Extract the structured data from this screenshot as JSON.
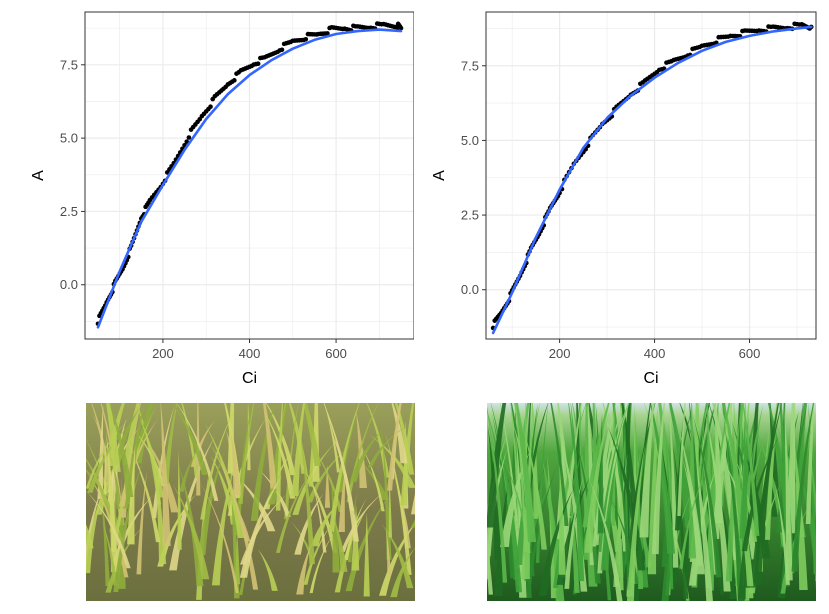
{
  "chart_data": [
    {
      "type": "scatter",
      "xlabel": "Ci",
      "ylabel": "A",
      "xlim": [
        20,
        780
      ],
      "ylim": [
        -1.85,
        9.3
      ],
      "xticks": [
        200,
        400,
        600
      ],
      "yticks": [
        0.0,
        2.5,
        5.0,
        7.5
      ],
      "xtick_labels": [
        "200",
        "400",
        "600"
      ],
      "ytick_labels": [
        "0.0",
        "2.5",
        "5.0",
        "7.5"
      ],
      "grid": true,
      "legend": "none",
      "colors": {
        "points": "#000000",
        "fit": "#3366ff",
        "grid": "#ebebeb",
        "frame": "#333333"
      },
      "series": [
        {
          "x": [
            50,
            70,
            90,
            110,
            130,
            150,
            170,
            200,
            230,
            260,
            290,
            320,
            350,
            380,
            410,
            440,
            470,
            500,
            530,
            560,
            590,
            620,
            650,
            680,
            710,
            740,
            750
          ],
          "y": [
            -1.25,
            -0.6,
            0.05,
            0.65,
            1.4,
            2.3,
            2.85,
            3.5,
            4.25,
            5.1,
            5.75,
            6.35,
            6.85,
            7.25,
            7.55,
            7.75,
            8.05,
            8.3,
            8.45,
            8.55,
            8.7,
            8.75,
            8.75,
            8.8,
            8.85,
            8.85,
            8.75
          ]
        },
        {
          "x": [
            50,
            100,
            150,
            200,
            250,
            300,
            350,
            400,
            450,
            500,
            550,
            600,
            650,
            700,
            750
          ],
          "y": [
            -1.45,
            0.45,
            2.15,
            3.4,
            4.6,
            5.65,
            6.5,
            7.15,
            7.65,
            8.05,
            8.35,
            8.55,
            8.65,
            8.7,
            8.65
          ]
        }
      ]
    },
    {
      "type": "scatter",
      "xlabel": "Ci",
      "ylabel": "A",
      "xlim": [
        45,
        740
      ],
      "ylim": [
        -1.65,
        9.3
      ],
      "xticks": [
        200,
        400,
        600
      ],
      "yticks": [
        0.0,
        2.5,
        5.0,
        7.5
      ],
      "xtick_labels": [
        "200",
        "400",
        "600"
      ],
      "ytick_labels": [
        "0.0",
        "2.5",
        "5.0",
        "7.5"
      ],
      "grid": true,
      "legend": "none",
      "colors": {
        "points": "#000000",
        "fit": "#3366ff",
        "grid": "#ebebeb",
        "frame": "#333333"
      },
      "series": [
        {
          "x": [
            60,
            80,
            100,
            120,
            140,
            160,
            180,
            200,
            230,
            260,
            290,
            320,
            350,
            380,
            410,
            440,
            470,
            500,
            530,
            560,
            590,
            620,
            650,
            680,
            710,
            730
          ],
          "y": [
            -1.2,
            -0.7,
            -0.1,
            0.6,
            1.35,
            2.0,
            2.7,
            3.3,
            4.2,
            4.9,
            5.55,
            6.05,
            6.55,
            6.95,
            7.4,
            7.65,
            7.9,
            8.15,
            8.35,
            8.5,
            8.6,
            8.7,
            8.75,
            8.8,
            8.85,
            8.8
          ]
        },
        {
          "x": [
            60,
            100,
            150,
            200,
            250,
            300,
            350,
            400,
            450,
            500,
            550,
            600,
            650,
            700,
            730
          ],
          "y": [
            -1.45,
            -0.1,
            1.75,
            3.35,
            4.75,
            5.75,
            6.5,
            7.1,
            7.6,
            8.0,
            8.3,
            8.5,
            8.65,
            8.75,
            8.8
          ]
        }
      ]
    }
  ],
  "photos": [
    {
      "icon": "stressed-rice-plants-photo",
      "colors": {
        "soil": "#7d7a4a",
        "leaf": "#a8c24a",
        "dry": "#c7b46a"
      }
    },
    {
      "icon": "healthy-rice-plants-photo",
      "colors": {
        "sky": "#cfe3e8",
        "leaf": "#2e8a2e",
        "light": "#7fcc5e"
      }
    }
  ]
}
